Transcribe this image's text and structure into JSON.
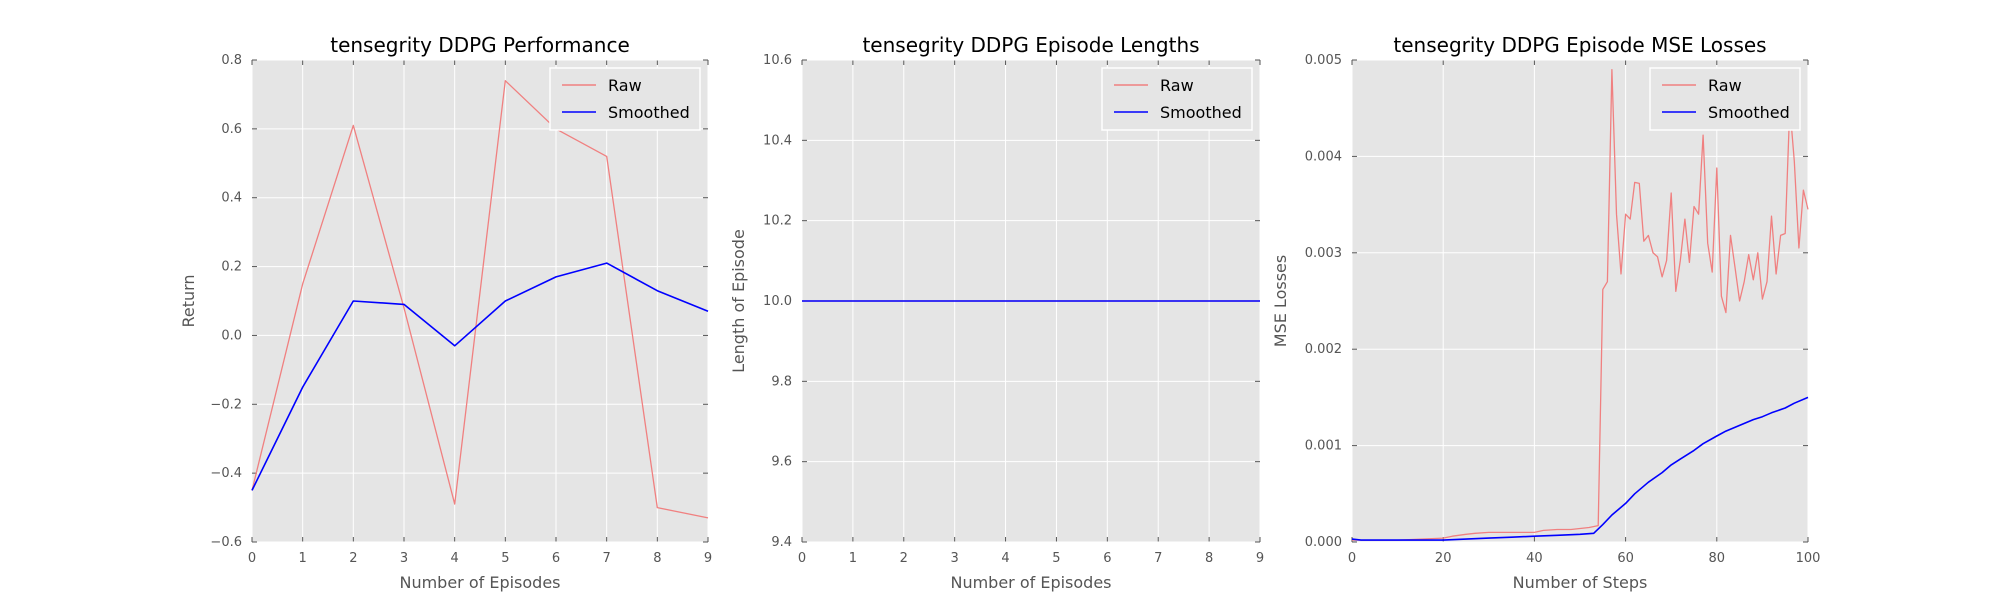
{
  "chart_data": [
    {
      "type": "line",
      "title": "tensegrity DDPG Performance",
      "xlabel": "Number of Episodes",
      "ylabel": "Return",
      "xlim": [
        0,
        9
      ],
      "ylim": [
        -0.6,
        0.8
      ],
      "xticks": [
        "0",
        "1",
        "2",
        "3",
        "4",
        "5",
        "6",
        "7",
        "8",
        "9"
      ],
      "yticks": [
        "−0.6",
        "−0.4",
        "−0.2",
        "0.0",
        "0.2",
        "0.4",
        "0.6",
        "0.8"
      ],
      "grid": true,
      "legend_position": "top-right",
      "series": [
        {
          "name": "Raw",
          "color": "#f08080",
          "x": [
            0,
            1,
            2,
            3,
            4,
            5,
            6,
            7,
            8,
            9
          ],
          "y": [
            -0.45,
            0.15,
            0.61,
            0.08,
            -0.49,
            0.74,
            0.6,
            0.52,
            -0.5,
            -0.53
          ]
        },
        {
          "name": "Smoothed",
          "color": "#0000ff",
          "x": [
            0,
            1,
            2,
            3,
            4,
            5,
            6,
            7,
            8,
            9
          ],
          "y": [
            -0.45,
            -0.15,
            0.1,
            0.09,
            -0.03,
            0.1,
            0.17,
            0.21,
            0.13,
            0.07
          ]
        }
      ]
    },
    {
      "type": "line",
      "title": "tensegrity DDPG Episode Lengths",
      "xlabel": "Number of Episodes",
      "ylabel": "Length of Episode",
      "xlim": [
        0,
        9
      ],
      "ylim": [
        9.4,
        10.6
      ],
      "xticks": [
        "0",
        "1",
        "2",
        "3",
        "4",
        "5",
        "6",
        "7",
        "8",
        "9"
      ],
      "yticks": [
        "9.4",
        "9.6",
        "9.8",
        "10.0",
        "10.2",
        "10.4",
        "10.6"
      ],
      "grid": true,
      "legend_position": "top-right",
      "series": [
        {
          "name": "Raw",
          "color": "#f08080",
          "x": [
            0,
            1,
            2,
            3,
            4,
            5,
            6,
            7,
            8,
            9
          ],
          "y": [
            10,
            10,
            10,
            10,
            10,
            10,
            10,
            10,
            10,
            10
          ]
        },
        {
          "name": "Smoothed",
          "color": "#0000ff",
          "x": [
            0,
            1,
            2,
            3,
            4,
            5,
            6,
            7,
            8,
            9
          ],
          "y": [
            10,
            10,
            10,
            10,
            10,
            10,
            10,
            10,
            10,
            10
          ]
        }
      ]
    },
    {
      "type": "line",
      "title": "tensegrity DDPG Episode MSE Losses",
      "xlabel": "Number of Steps",
      "ylabel": "MSE Losses",
      "xlim": [
        0,
        100
      ],
      "ylim": [
        0,
        0.005
      ],
      "xticks": [
        "0",
        "20",
        "40",
        "60",
        "80",
        "100"
      ],
      "yticks": [
        "0.000",
        "0.001",
        "0.002",
        "0.003",
        "0.004",
        "0.005"
      ],
      "grid": true,
      "legend_position": "top-right",
      "series": [
        {
          "name": "Raw",
          "color": "#f08080",
          "x": [
            0,
            2,
            5,
            10,
            15,
            20,
            22,
            25,
            27,
            30,
            35,
            40,
            42,
            45,
            48,
            50,
            52,
            54,
            55,
            56,
            57,
            58,
            59,
            60,
            61,
            62,
            63,
            64,
            65,
            66,
            67,
            68,
            69,
            70,
            71,
            72,
            73,
            74,
            75,
            76,
            77,
            78,
            79,
            80,
            81,
            82,
            83,
            84,
            85,
            86,
            87,
            88,
            89,
            90,
            91,
            92,
            93,
            94,
            95,
            96,
            97,
            98,
            99,
            100
          ],
          "y": [
            2e-05,
            2e-05,
            2e-05,
            2e-05,
            3e-05,
            4e-05,
            6e-05,
            8e-05,
            9e-05,
            0.0001,
            0.0001,
            0.0001,
            0.00012,
            0.00013,
            0.00013,
            0.00014,
            0.00015,
            0.00017,
            0.00262,
            0.0027,
            0.0049,
            0.0034,
            0.00278,
            0.0034,
            0.00335,
            0.00373,
            0.00372,
            0.00312,
            0.00318,
            0.003,
            0.00296,
            0.00275,
            0.00292,
            0.00362,
            0.0026,
            0.00292,
            0.00335,
            0.0029,
            0.00348,
            0.0034,
            0.00422,
            0.0031,
            0.0028,
            0.00388,
            0.00255,
            0.00238,
            0.00318,
            0.00285,
            0.0025,
            0.0027,
            0.00298,
            0.00272,
            0.003,
            0.00252,
            0.0027,
            0.00338,
            0.00278,
            0.00318,
            0.0032,
            0.00452,
            0.00395,
            0.00305,
            0.00365,
            0.00345
          ]
        },
        {
          "name": "Smoothed",
          "color": "#0000ff",
          "x": [
            0,
            2,
            5,
            10,
            15,
            20,
            25,
            30,
            35,
            40,
            45,
            50,
            53,
            55,
            57,
            60,
            62,
            65,
            68,
            70,
            72,
            75,
            77,
            80,
            82,
            85,
            88,
            90,
            92,
            95,
            97,
            100
          ],
          "y": [
            3e-05,
            2e-05,
            2e-05,
            2e-05,
            2e-05,
            2e-05,
            3e-05,
            4e-05,
            5e-05,
            6e-05,
            7e-05,
            8e-05,
            9e-05,
            0.00018,
            0.00028,
            0.0004,
            0.0005,
            0.00062,
            0.00072,
            0.0008,
            0.00086,
            0.00095,
            0.00102,
            0.0011,
            0.00115,
            0.00121,
            0.00127,
            0.0013,
            0.00134,
            0.00139,
            0.00144,
            0.0015
          ]
        }
      ]
    }
  ]
}
